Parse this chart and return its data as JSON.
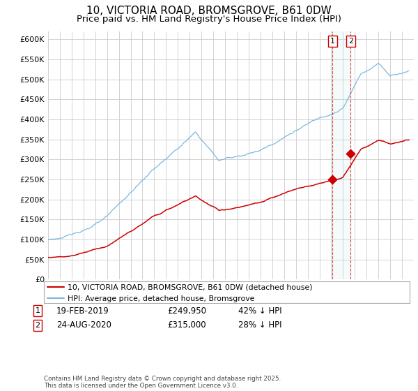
{
  "title": "10, VICTORIA ROAD, BROMSGROVE, B61 0DW",
  "subtitle": "Price paid vs. HM Land Registry's House Price Index (HPI)",
  "ylim": [
    0,
    620000
  ],
  "yticks": [
    0,
    50000,
    100000,
    150000,
    200000,
    250000,
    300000,
    350000,
    400000,
    450000,
    500000,
    550000,
    600000
  ],
  "hpi_color": "#7ab8e0",
  "price_color": "#cc0000",
  "vline_color": "#cc0000",
  "transaction1_year": 2019.12,
  "transaction1_price": 249950,
  "transaction2_year": 2020.65,
  "transaction2_price": 315000,
  "legend_line1": "10, VICTORIA ROAD, BROMSGROVE, B61 0DW (detached house)",
  "legend_line2": "HPI: Average price, detached house, Bromsgrove",
  "table_row1": [
    "1",
    "19-FEB-2019",
    "£249,950",
    "42% ↓ HPI"
  ],
  "table_row2": [
    "2",
    "24-AUG-2020",
    "£315,000",
    "28% ↓ HPI"
  ],
  "footnote": "Contains HM Land Registry data © Crown copyright and database right 2025.\nThis data is licensed under the Open Government Licence v3.0.",
  "background_color": "#ffffff",
  "grid_color": "#cccccc",
  "xstart": 1995,
  "xend": 2026
}
